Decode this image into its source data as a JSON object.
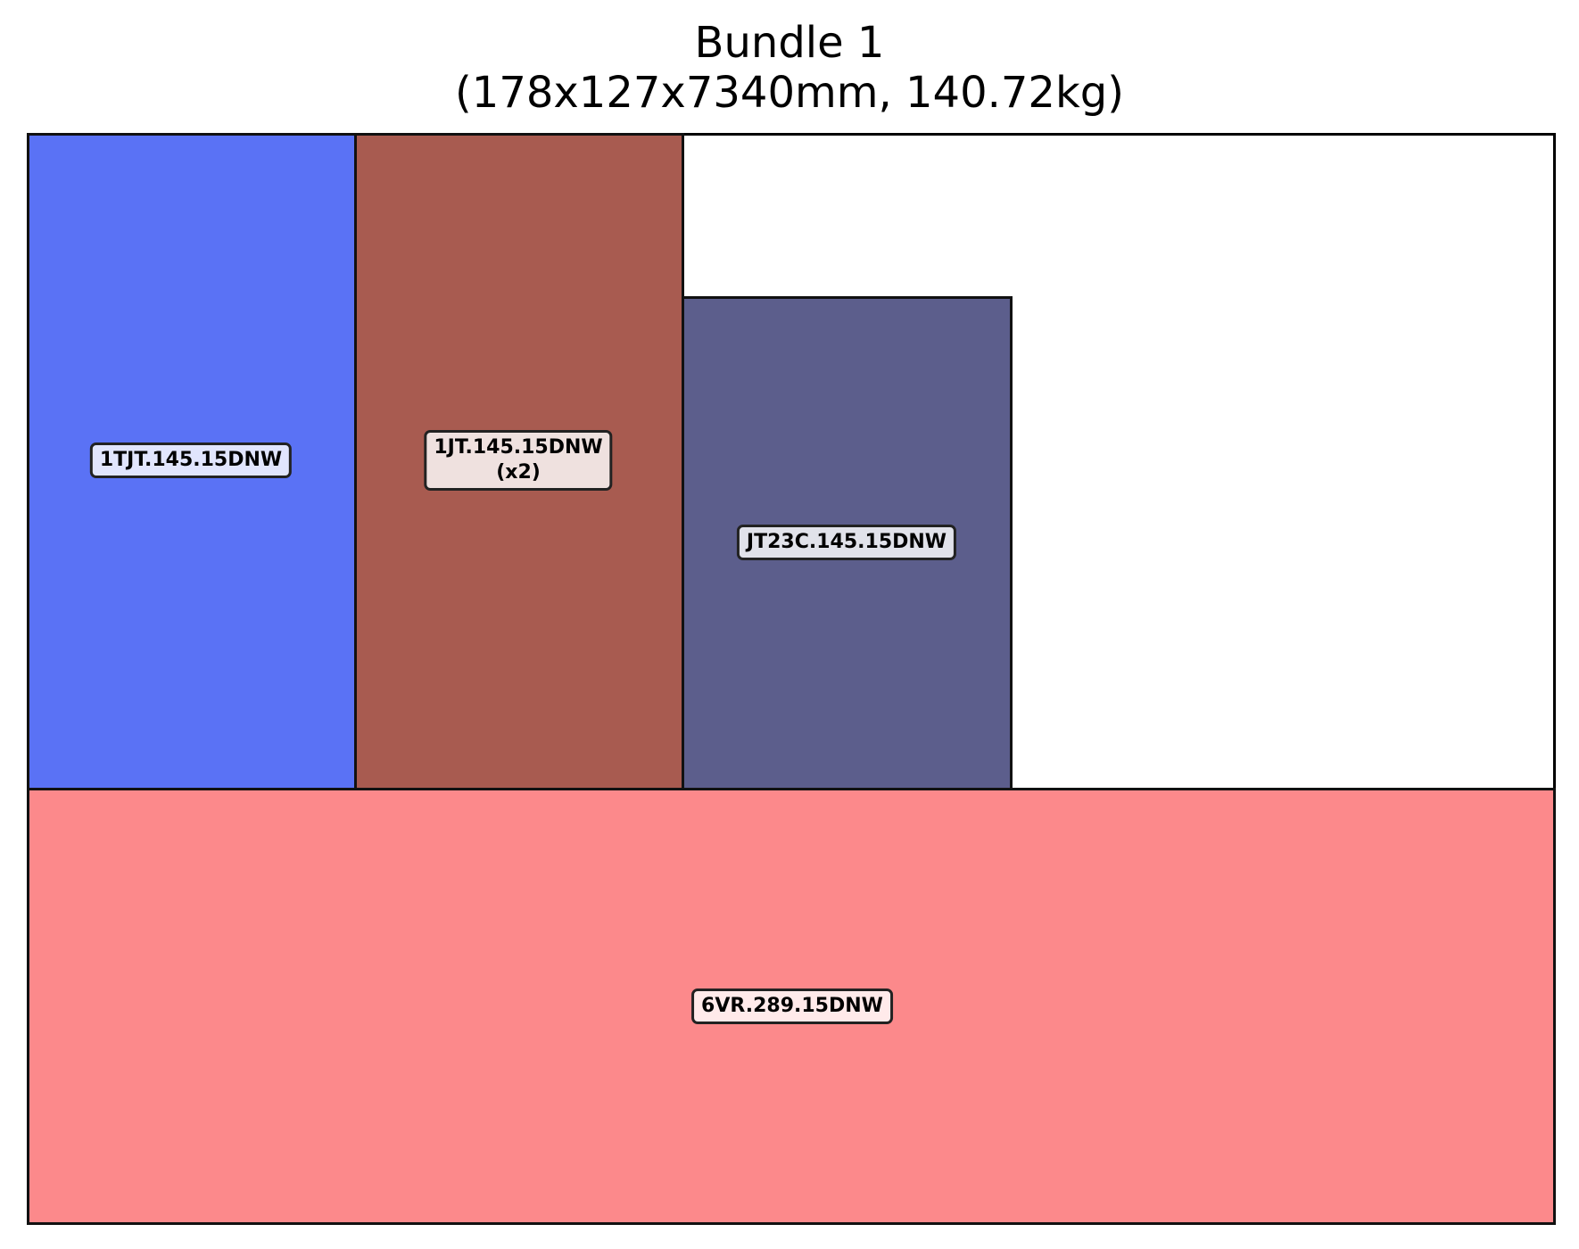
{
  "title": {
    "line1": "Bundle 1",
    "line2": "(178x127x7340mm, 140.72kg)"
  },
  "pieces": [
    {
      "id": "p1",
      "label": "1TJT.145.15DNW",
      "qty": "",
      "color": "#5a72f5"
    },
    {
      "id": "p2",
      "label": "1JT.145.15DNW",
      "qty": "(x2)",
      "color": "#a85b50"
    },
    {
      "id": "p3",
      "label": "JT23C.145.15DNW",
      "qty": "",
      "color": "#5c5e8c"
    },
    {
      "id": "p4",
      "label": "6VR.289.15DNW",
      "qty": "",
      "color": "#fc898b"
    }
  ],
  "colors": {
    "outline": "#000000",
    "label_border": "#222222"
  }
}
